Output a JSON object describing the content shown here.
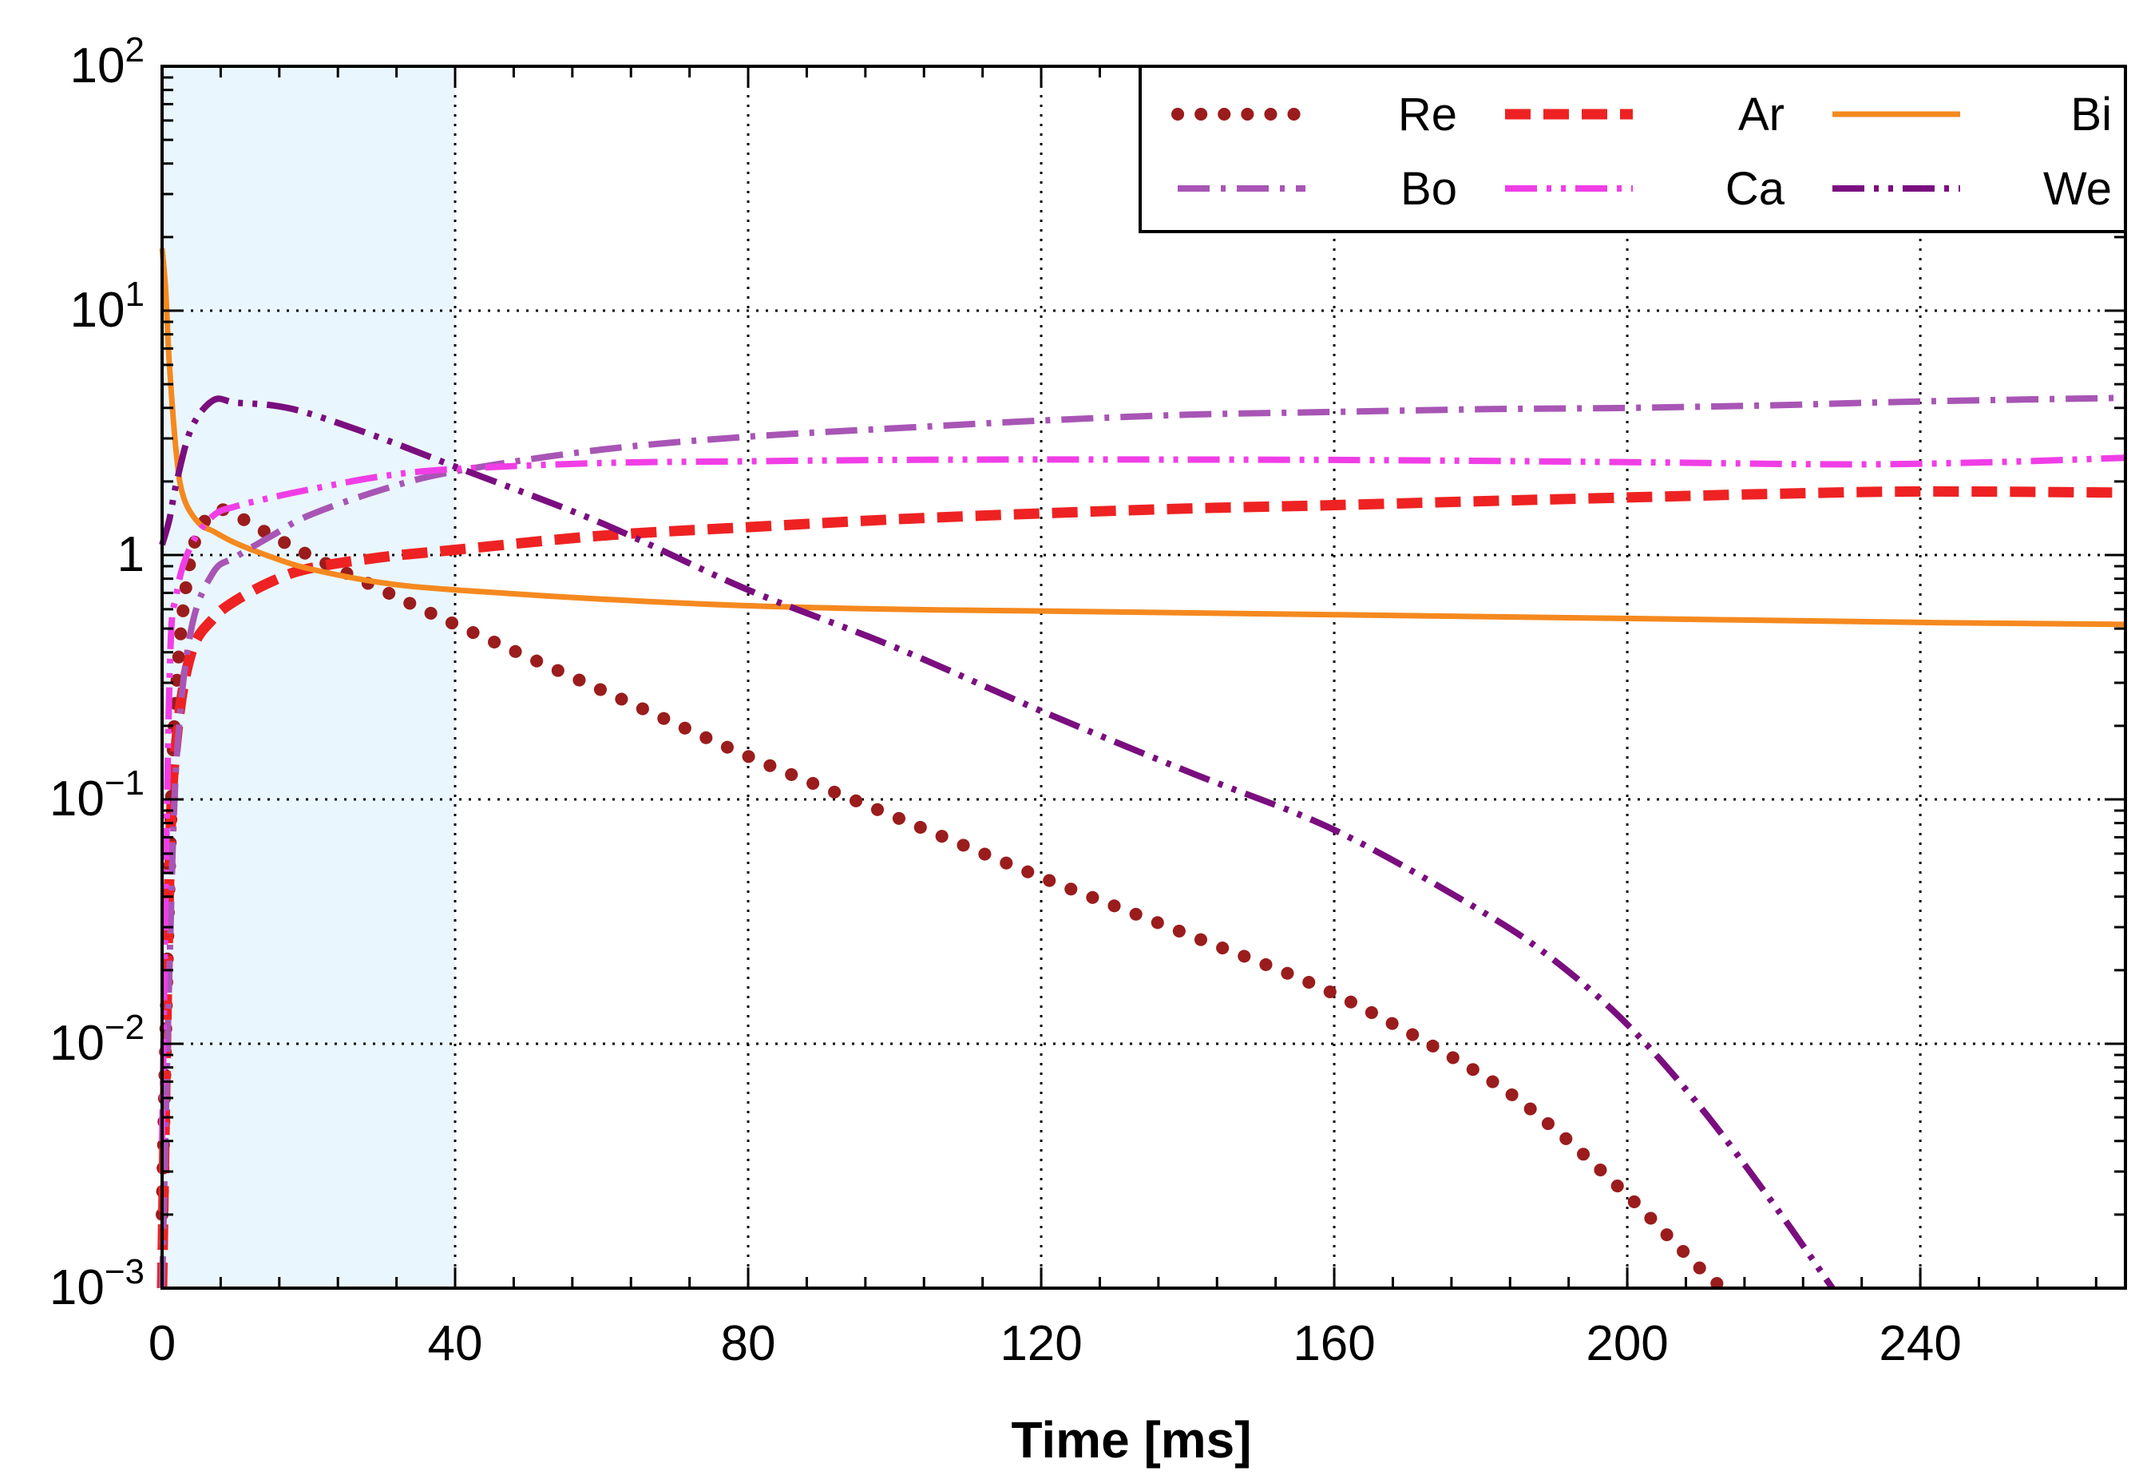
{
  "chart_data": {
    "type": "line",
    "title": "",
    "xlabel": "Time [ms]",
    "ylabel": "",
    "xlim": [
      0,
      268
    ],
    "ylim": [
      0.001,
      100
    ],
    "yscale": "log",
    "grid": true,
    "legend_position": "top-right",
    "highlight_region": {
      "x_start": 0,
      "x_end": 40,
      "color": "#eaf6fd"
    },
    "x_ticks": [
      {
        "value": 0,
        "label": "0"
      },
      {
        "value": 40,
        "label": "40"
      },
      {
        "value": 80,
        "label": "80"
      },
      {
        "value": 120,
        "label": "120"
      },
      {
        "value": 160,
        "label": "160"
      },
      {
        "value": 200,
        "label": "200"
      },
      {
        "value": 240,
        "label": "240"
      }
    ],
    "y_ticks": [
      {
        "value": 100,
        "base": "10",
        "exp": "2"
      },
      {
        "value": 10,
        "base": "10",
        "exp": "1"
      },
      {
        "value": 1,
        "base": "1",
        "exp": ""
      },
      {
        "value": 0.1,
        "base": "10",
        "exp": "−1"
      },
      {
        "value": 0.01,
        "base": "10",
        "exp": "−2"
      },
      {
        "value": 0.001,
        "base": "10",
        "exp": "−3"
      }
    ],
    "series": [
      {
        "name": "Re",
        "color": "#9b1c1c",
        "style": "dotted",
        "x": [
          0,
          1,
          2,
          4,
          7,
          10,
          15,
          20,
          30,
          40,
          60,
          80,
          100,
          120,
          140,
          160,
          180,
          190,
          200,
          205,
          210,
          213
        ],
        "y": [
          0.002,
          0.05,
          0.3,
          1.0,
          1.5,
          1.45,
          1.2,
          1.0,
          0.72,
          0.52,
          0.28,
          0.15,
          0.085,
          0.048,
          0.028,
          0.016,
          0.0075,
          0.0045,
          0.0024,
          0.0017,
          0.0012,
          0.001
        ]
      },
      {
        "name": "Ar",
        "color": "#ee2222",
        "style": "dashed",
        "x": [
          0,
          1,
          2,
          4,
          7,
          10,
          15,
          20,
          30,
          40,
          60,
          80,
          100,
          120,
          140,
          160,
          180,
          200,
          220,
          240,
          268
        ],
        "y": [
          0.001,
          0.05,
          0.18,
          0.4,
          0.55,
          0.65,
          0.78,
          0.88,
          0.98,
          1.05,
          1.2,
          1.3,
          1.4,
          1.48,
          1.55,
          1.6,
          1.66,
          1.72,
          1.78,
          1.82,
          1.8
        ]
      },
      {
        "name": "Bi",
        "color": "#f5891f",
        "style": "solid",
        "x": [
          0,
          0.5,
          1,
          2,
          3,
          5,
          7,
          10,
          15,
          20,
          30,
          40,
          60,
          80,
          100,
          120,
          160,
          200,
          240,
          268
        ],
        "y": [
          18,
          12,
          6,
          2.5,
          1.7,
          1.35,
          1.25,
          1.12,
          0.98,
          0.88,
          0.77,
          0.72,
          0.66,
          0.62,
          0.6,
          0.59,
          0.57,
          0.55,
          0.53,
          0.52
        ]
      },
      {
        "name": "Bo",
        "color": "#a855b5",
        "style": "dashdot",
        "x": [
          0,
          1,
          2,
          4,
          7,
          10,
          15,
          20,
          30,
          40,
          60,
          80,
          100,
          120,
          140,
          160,
          180,
          200,
          220,
          240,
          268
        ],
        "y": [
          0.001,
          0.02,
          0.15,
          0.5,
          0.85,
          0.98,
          1.2,
          1.45,
          1.85,
          2.2,
          2.7,
          3.05,
          3.3,
          3.55,
          3.75,
          3.85,
          3.95,
          4.0,
          4.1,
          4.25,
          4.4
        ]
      },
      {
        "name": "Ca",
        "color": "#f03ee6",
        "style": "dashdotdot",
        "x": [
          0,
          1,
          2,
          4,
          7,
          10,
          15,
          20,
          30,
          40,
          60,
          80,
          100,
          120,
          160,
          200,
          230,
          250,
          268
        ],
        "y": [
          0.004,
          0.3,
          0.7,
          1.1,
          1.45,
          1.58,
          1.72,
          1.85,
          2.1,
          2.25,
          2.38,
          2.42,
          2.45,
          2.46,
          2.45,
          2.4,
          2.35,
          2.4,
          2.5
        ]
      },
      {
        "name": "We",
        "color": "#7a0e7f",
        "style": "dashdotdot",
        "x": [
          0,
          1,
          2,
          4,
          7,
          10,
          15,
          20,
          30,
          40,
          60,
          80,
          100,
          120,
          140,
          160,
          180,
          190,
          200,
          210,
          220,
          228
        ],
        "y": [
          1.1,
          1.4,
          2.0,
          3.3,
          4.3,
          4.2,
          4.1,
          3.8,
          3.0,
          2.3,
          1.35,
          0.72,
          0.42,
          0.23,
          0.13,
          0.075,
          0.035,
          0.022,
          0.012,
          0.0055,
          0.0022,
          0.001
        ]
      }
    ]
  }
}
